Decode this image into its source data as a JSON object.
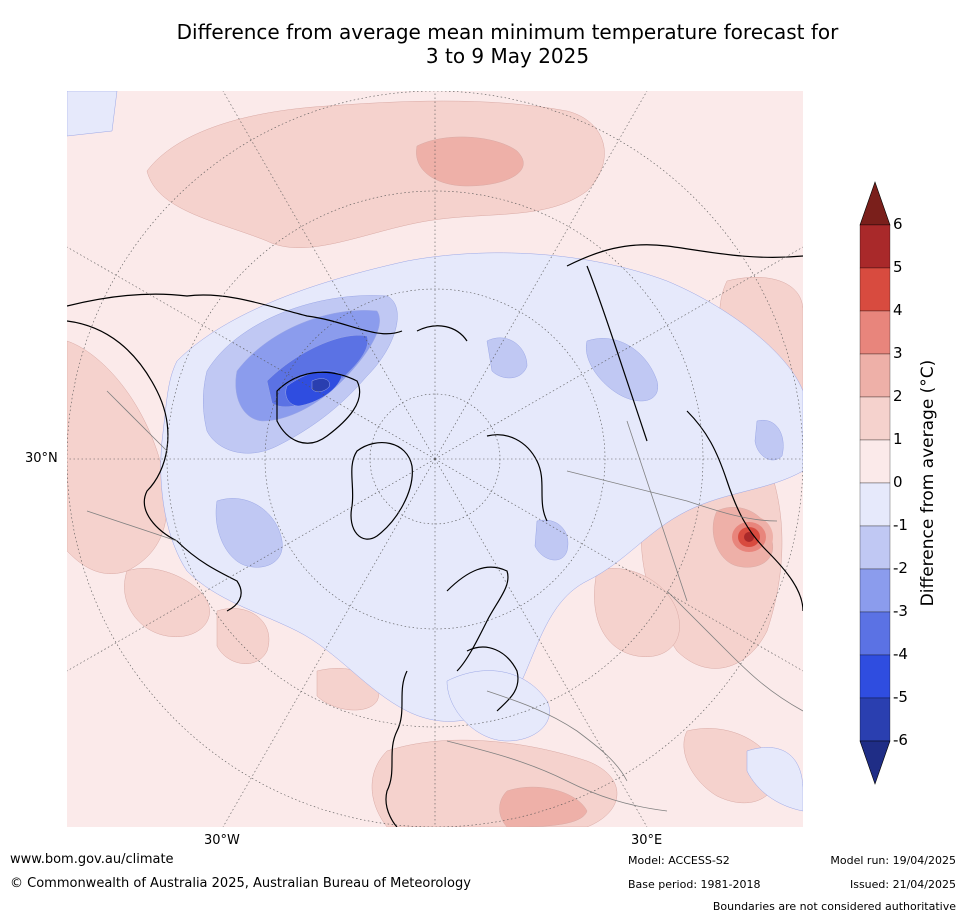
{
  "title": {
    "line1": "Difference from average mean minimum temperature forecast for",
    "line2": "3 to 9 May 2025"
  },
  "map": {
    "projection": "north-polar-stereographic",
    "lat_labels": [
      "30°N"
    ],
    "lon_labels": [
      "30°W",
      "30°E"
    ],
    "ocean_color": "#fbeaea"
  },
  "colorbar": {
    "title": "Difference from average (°C)",
    "tick_labels": [
      "6",
      "5",
      "4",
      "3",
      "2",
      "1",
      "0",
      "-1",
      "-2",
      "-3",
      "-4",
      "-5",
      "-6"
    ],
    "bands": [
      {
        "range": "above 6",
        "color": "#7a1f1b"
      },
      {
        "range": "5 to 6",
        "color": "#a9292a"
      },
      {
        "range": "4 to 5",
        "color": "#d84b3f"
      },
      {
        "range": "3 to 4",
        "color": "#e8857c"
      },
      {
        "range": "2 to 3",
        "color": "#eeb0a8"
      },
      {
        "range": "1 to 2",
        "color": "#f5d2cd"
      },
      {
        "range": "0 to 1",
        "color": "#fbeaea"
      },
      {
        "range": "-1 to 0",
        "color": "#e6e9fb"
      },
      {
        "range": "-2 to -1",
        "color": "#c0c8f3"
      },
      {
        "range": "-3 to -2",
        "color": "#8b9ced"
      },
      {
        "range": "-4 to -3",
        "color": "#5b72e4"
      },
      {
        "range": "-5 to -4",
        "color": "#2f4de0"
      },
      {
        "range": "-6 to -5",
        "color": "#2a3fb0"
      },
      {
        "range": "below -6",
        "color": "#1f2d86"
      }
    ]
  },
  "footer": {
    "website": "www.bom.gov.au/climate",
    "copyright": "© Commonwealth of Australia 2025, Australian Bureau of Meteorology",
    "model": "Model: ACCESS-S2",
    "base_period": "Base period: 1981-2018",
    "model_run": "Model run: 19/04/2025",
    "issued": "Issued: 21/04/2025",
    "disclaimer": "Boundaries are not considered authoritative"
  }
}
